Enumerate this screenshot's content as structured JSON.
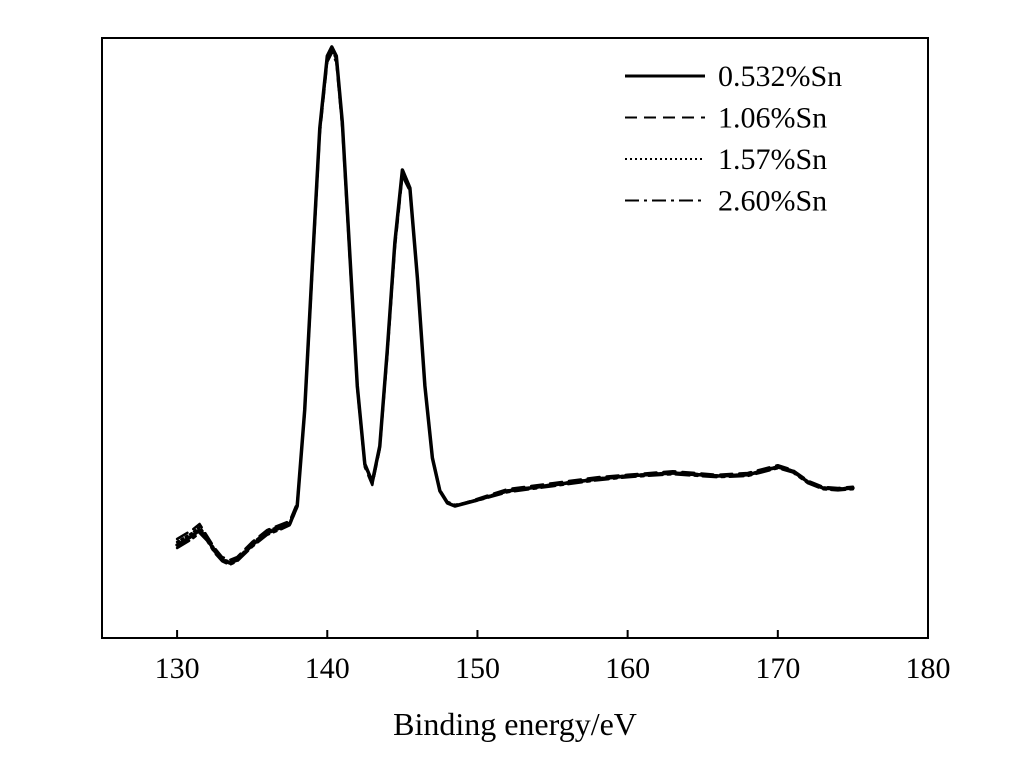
{
  "chart_data": {
    "type": "line",
    "title": "",
    "xlabel": "Binding energy/eV",
    "ylabel": "",
    "xlim": [
      125,
      180
    ],
    "ylim": [
      0,
      1
    ],
    "x_ticks": [
      130,
      140,
      150,
      160,
      170,
      180
    ],
    "y_ticks_shown": false,
    "grid": false,
    "legend_position": "top-right",
    "series": [
      {
        "name": "0.532%Sn",
        "style": "solid",
        "color": "#000000",
        "x": [
          130,
          131,
          131.5,
          132,
          132.5,
          133,
          133.5,
          134,
          135,
          136,
          137,
          137.5,
          138,
          138.5,
          139,
          139.5,
          140,
          140.3,
          140.6,
          141,
          141.5,
          142,
          142.5,
          143,
          143.5,
          144,
          144.5,
          145,
          145.5,
          146,
          146.5,
          147,
          147.5,
          148,
          148.5,
          150,
          152,
          155,
          158,
          160,
          163,
          166,
          168,
          170,
          171,
          172,
          173,
          174,
          175
        ],
        "y": [
          0.155,
          0.17,
          0.18,
          0.165,
          0.145,
          0.13,
          0.125,
          0.13,
          0.155,
          0.175,
          0.185,
          0.19,
          0.22,
          0.38,
          0.62,
          0.85,
          0.97,
          0.985,
          0.97,
          0.86,
          0.64,
          0.42,
          0.29,
          0.26,
          0.32,
          0.48,
          0.66,
          0.78,
          0.75,
          0.6,
          0.42,
          0.3,
          0.245,
          0.225,
          0.22,
          0.23,
          0.245,
          0.255,
          0.265,
          0.27,
          0.275,
          0.27,
          0.272,
          0.285,
          0.278,
          0.26,
          0.25,
          0.248,
          0.25
        ]
      },
      {
        "name": "1.06%Sn",
        "style": "dashed",
        "color": "#000000",
        "x": [
          130,
          131,
          131.5,
          132,
          132.5,
          133,
          133.5,
          134,
          135,
          136,
          137,
          137.5,
          138,
          138.5,
          139,
          139.5,
          140,
          140.3,
          140.6,
          141,
          141.5,
          142,
          142.5,
          143,
          143.5,
          144,
          144.5,
          145,
          145.5,
          146,
          146.5,
          147,
          147.5,
          148,
          148.5,
          150,
          152,
          155,
          158,
          160,
          163,
          166,
          168,
          170,
          171,
          172,
          173,
          174,
          175
        ],
        "y": [
          0.165,
          0.18,
          0.19,
          0.17,
          0.15,
          0.135,
          0.13,
          0.135,
          0.16,
          0.18,
          0.19,
          0.195,
          0.225,
          0.375,
          0.61,
          0.84,
          0.96,
          0.975,
          0.96,
          0.85,
          0.63,
          0.415,
          0.285,
          0.255,
          0.315,
          0.47,
          0.65,
          0.77,
          0.745,
          0.6,
          0.42,
          0.3,
          0.245,
          0.225,
          0.22,
          0.232,
          0.248,
          0.258,
          0.268,
          0.272,
          0.278,
          0.272,
          0.275,
          0.288,
          0.28,
          0.262,
          0.252,
          0.25,
          0.252
        ]
      },
      {
        "name": "1.57%Sn",
        "style": "dotted",
        "color": "#000000",
        "x": [
          130,
          131,
          131.5,
          132,
          132.5,
          133,
          133.5,
          134,
          135,
          136,
          137,
          137.5,
          138,
          138.5,
          139,
          139.5,
          140,
          140.3,
          140.6,
          141,
          141.5,
          142,
          142.5,
          143,
          143.5,
          144,
          144.5,
          145,
          145.5,
          146,
          146.5,
          147,
          147.5,
          148,
          148.5,
          150,
          152,
          155,
          158,
          160,
          163,
          166,
          168,
          170,
          171,
          172,
          173,
          174,
          175
        ],
        "y": [
          0.16,
          0.175,
          0.185,
          0.168,
          0.148,
          0.132,
          0.127,
          0.132,
          0.158,
          0.178,
          0.188,
          0.192,
          0.222,
          0.378,
          0.615,
          0.845,
          0.965,
          0.98,
          0.965,
          0.855,
          0.635,
          0.418,
          0.288,
          0.258,
          0.318,
          0.475,
          0.655,
          0.775,
          0.748,
          0.6,
          0.42,
          0.3,
          0.245,
          0.225,
          0.22,
          0.231,
          0.246,
          0.256,
          0.266,
          0.271,
          0.276,
          0.271,
          0.273,
          0.286,
          0.279,
          0.261,
          0.251,
          0.249,
          0.251
        ]
      },
      {
        "name": "2.60%Sn",
        "style": "dashdot",
        "color": "#000000",
        "x": [
          130,
          131,
          131.5,
          132,
          132.5,
          133,
          133.5,
          134,
          135,
          136,
          137,
          137.5,
          138,
          138.5,
          139,
          139.5,
          140,
          140.3,
          140.6,
          141,
          141.5,
          142,
          142.5,
          143,
          143.5,
          144,
          144.5,
          145,
          145.5,
          146,
          146.5,
          147,
          147.5,
          148,
          148.5,
          150,
          152,
          155,
          158,
          160,
          163,
          166,
          168,
          170,
          171,
          172,
          173,
          174,
          175
        ],
        "y": [
          0.15,
          0.165,
          0.175,
          0.162,
          0.142,
          0.128,
          0.122,
          0.128,
          0.152,
          0.172,
          0.182,
          0.188,
          0.218,
          0.382,
          0.62,
          0.85,
          0.968,
          0.982,
          0.968,
          0.858,
          0.638,
          0.42,
          0.29,
          0.26,
          0.32,
          0.478,
          0.658,
          0.78,
          0.752,
          0.602,
          0.422,
          0.302,
          0.247,
          0.227,
          0.222,
          0.229,
          0.243,
          0.253,
          0.263,
          0.268,
          0.273,
          0.268,
          0.27,
          0.283,
          0.276,
          0.258,
          0.248,
          0.246,
          0.248
        ]
      }
    ]
  }
}
